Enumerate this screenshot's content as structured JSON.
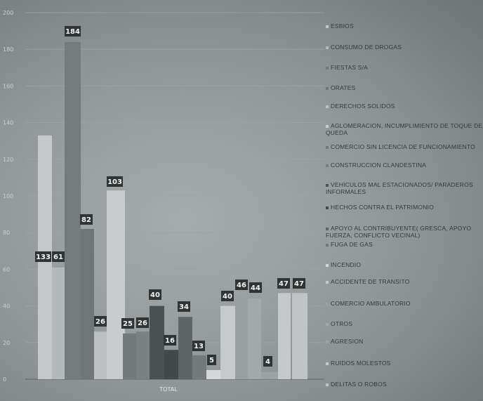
{
  "chart_data": {
    "type": "bar",
    "categories": [
      "TOTAL"
    ],
    "ylim": [
      0,
      200
    ],
    "yticks": [
      0,
      20,
      40,
      60,
      80,
      100,
      120,
      140,
      160,
      180,
      200
    ],
    "grid": true,
    "legend_position": "right",
    "series": [
      {
        "name": "ESBIOS",
        "value": 133,
        "color": "#c4c8c8"
      },
      {
        "name": "CONSUMO DE DROGAS",
        "value": 61,
        "color": "#b3b8b8"
      },
      {
        "name": "FIESTAS S/A",
        "value": 184,
        "color": "#757b7c"
      },
      {
        "name": "ORATES",
        "value": 82,
        "color": "#707677"
      },
      {
        "name": "DERECHOS SOLIDOS",
        "value": 26,
        "color": "#bcc0c0"
      },
      {
        "name": "AGLOMERACION, INCUMPLIMIENTO DE TOQUE DE QUEDA",
        "value": 103,
        "color": "#c9cccc"
      },
      {
        "name": "COMERCIO SIN LICENCIA DE FUNCIONAMIENTO",
        "value": 25,
        "color": "#747a7b"
      },
      {
        "name": "CONSTRUCCION CLANDESTINA",
        "value": 26,
        "color": "#7b8181"
      },
      {
        "name": "VEHICULOS MAL ESTACIONADOS/ PARADEROS INFORMALES",
        "value": 40,
        "color": "#4c5253"
      },
      {
        "name": "HECHOS CONTRA EL PATRIMONIO",
        "value": 16,
        "color": "#43494a"
      },
      {
        "name": "APOYO AL CONTRIBUYENTE( GRESCA, APOYO FUERZA, CONFLICTO VECINAL)",
        "value": 34,
        "color": "#5f6566"
      },
      {
        "name": "FUGA DE GAS",
        "value": 13,
        "color": "#747a7b"
      },
      {
        "name": "INCENDIO",
        "value": 5,
        "color": "#d4d7d7"
      },
      {
        "name": "ACCIDENTE DE TRANSITO",
        "value": 40,
        "color": "#c6caca"
      },
      {
        "name": "COMERCIO AMBULATORIO",
        "value": 46,
        "color": "#9aa0a0"
      },
      {
        "name": "OTROS",
        "value": 44,
        "color": "#a3a8a8"
      },
      {
        "name": "AGRESION",
        "value": 4,
        "color": "#9ca1a1"
      },
      {
        "name": "RUIDOS MOLESTOS",
        "value": 47,
        "color": "#c5c9c9"
      },
      {
        "name": "DELITAS O ROBOS",
        "value": 47,
        "color": "#c0c4c4"
      }
    ]
  }
}
